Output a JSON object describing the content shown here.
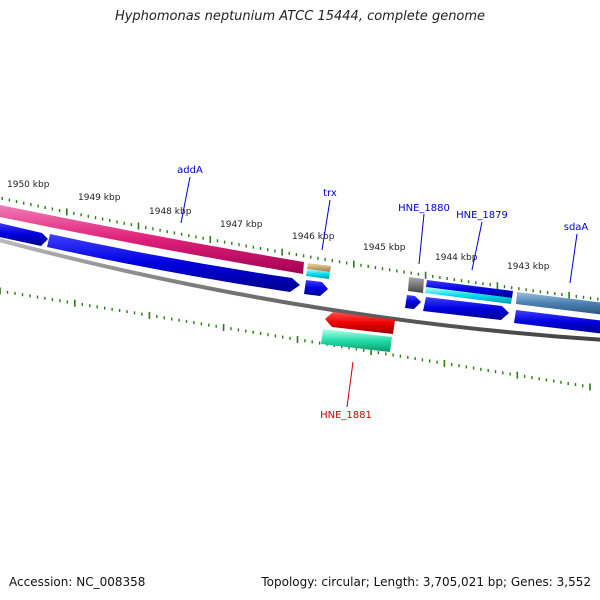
{
  "header": {
    "title": "Hyphomonas neptunium ATCC 15444, complete genome"
  },
  "footer": {
    "accession": "Accession: NC_008358",
    "topology": "Topology: circular; Length: 3,705,021 bp; Genes: 3,552"
  },
  "map": {
    "tick_labels": [
      "1950 kbp",
      "1949 kbp",
      "1948 kbp",
      "1947 kbp",
      "1946 kbp",
      "1945 kbp",
      "1944 kbp",
      "1943 kbp"
    ],
    "genes": [
      {
        "name": "addA",
        "color": "#0000cc"
      },
      {
        "name": "trx",
        "color": "#0000cc"
      },
      {
        "name": "HNE_1880",
        "color": "#0000cc"
      },
      {
        "name": "HNE_1879",
        "color": "#0000cc"
      },
      {
        "name": "sdaA",
        "color": "#0000cc"
      },
      {
        "name": "HNE_1881",
        "color": "#cc0000"
      }
    ]
  },
  "colors": {
    "backbone": "#777777",
    "tick": "#2a7a1a",
    "forward_cds": "#0000e0",
    "reverse_cds": "#ee0000",
    "addA_feature": "#e0207a",
    "trx_feature": "#c8a060",
    "hne1880_feature": "#666666",
    "hne1879_feature": "#00ddee",
    "sdaA_feature": "#4a7fb0",
    "hne1881_feature": "#22ddaa"
  }
}
